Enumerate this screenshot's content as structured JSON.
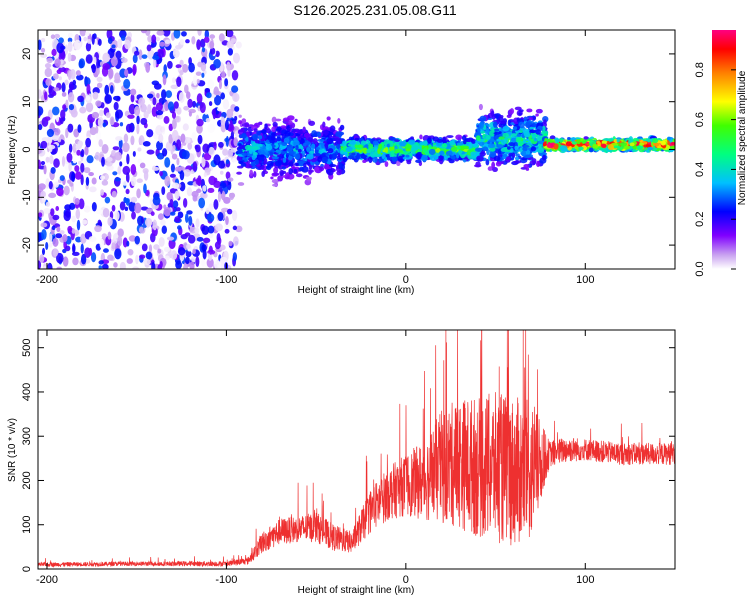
{
  "title": "S126.2025.231.05.08.G11",
  "colors": {
    "trace": "#ee3030",
    "purple": "#7a00e0",
    "background": "#ffffff"
  },
  "chart_data": [
    {
      "type": "heatmap",
      "xlabel": "Height of straight line (km)",
      "ylabel": "Frequency (Hz)",
      "xlim": [
        -205,
        150
      ],
      "ylim": [
        -25,
        25
      ],
      "xticks": [
        -200,
        -100,
        0,
        100
      ],
      "yticks": [
        -20,
        -10,
        0,
        10,
        20
      ],
      "grid": false,
      "colorbar": {
        "label": "Normalized spectral amplitude",
        "range": [
          0,
          0.96
        ],
        "ticks": [
          "0.0",
          "0.2",
          "0.4",
          "0.6",
          "0.8"
        ]
      },
      "regions": [
        {
          "x_range": [
            -205,
            -93
          ],
          "y_range": [
            -25,
            25
          ],
          "character": "noise",
          "amplitude": 0.15
        },
        {
          "x_range": [
            -93,
            -35
          ],
          "center_hz": 0,
          "spread_hz": 5,
          "amplitude": 0.35
        },
        {
          "x_range": [
            -35,
            40
          ],
          "center_hz": 0,
          "spread_hz": 2,
          "amplitude": 0.55
        },
        {
          "x_range": [
            40,
            78
          ],
          "center_hz": 2,
          "spread_hz": 5,
          "amplitude": 0.45
        },
        {
          "x_range": [
            78,
            150
          ],
          "center_hz": 1,
          "spread_hz": 1,
          "amplitude": 0.9
        }
      ]
    },
    {
      "type": "line",
      "xlabel": "Height of straight line (km)",
      "ylabel": "SNR (10 * v/v)",
      "xlim": [
        -205,
        150
      ],
      "ylim": [
        0,
        540
      ],
      "xticks": [
        -200,
        -100,
        0,
        100
      ],
      "yticks": [
        0,
        100,
        200,
        300,
        400,
        500
      ],
      "grid": false,
      "envelope": {
        "x": [
          -205,
          -150,
          -100,
          -88,
          -80,
          -70,
          -60,
          -50,
          -40,
          -30,
          -20,
          -10,
          0,
          10,
          20,
          30,
          40,
          50,
          60,
          70,
          80,
          90,
          100,
          120,
          150
        ],
        "baseline": [
          10,
          12,
          12,
          18,
          60,
          85,
          90,
          95,
          70,
          60,
          130,
          170,
          190,
          200,
          230,
          240,
          230,
          230,
          220,
          220,
          260,
          270,
          270,
          260,
          260
        ],
        "amplitude": [
          5,
          5,
          6,
          8,
          25,
          30,
          30,
          35,
          30,
          25,
          50,
          60,
          70,
          90,
          130,
          150,
          160,
          170,
          170,
          160,
          30,
          30,
          25,
          25,
          25
        ]
      }
    }
  ]
}
